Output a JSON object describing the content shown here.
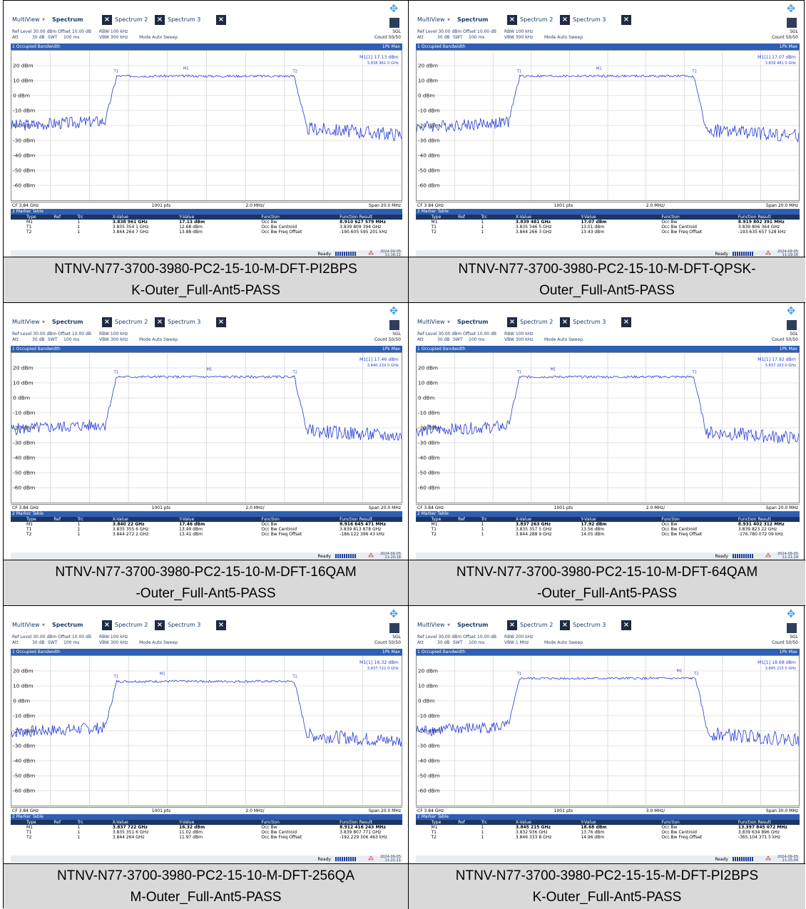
{
  "common": {
    "multiview": "MultiView",
    "tab_spectrum": "Spectrum",
    "tab_spectrum2": "Spectrum 2",
    "tab_spectrum3": "Spectrum 3",
    "ref_level": "Ref Level 30.00 dBm",
    "offset": "Offset 10.00 dB",
    "att": "Att",
    "att_val": "30 dB",
    "swt": "SWT",
    "swt_val": "100 ms",
    "mode": "Mode Auto Sweep",
    "sgl": "SGL",
    "count": "Count 50/50",
    "occ_title": "1 Occupied Bandwidth",
    "pk_max": "1Pk Max",
    "cf": "CF 3.84 GHz",
    "pts": "1001 pts",
    "marker_table": "2 Marker Table",
    "hdr_type": "Type",
    "hdr_ref": "Ref",
    "hdr_trc": "Trc",
    "hdr_x": "X-Value",
    "hdr_y": "Y-Value",
    "hdr_fn": "Function",
    "hdr_res": "Function Result",
    "fn_bw": "Occ Bw",
    "fn_centroid": "Occ Bw Centroid",
    "fn_offset": "Occ Bw Freq Offset",
    "ready": "Ready",
    "y_labels": [
      "20 dBm",
      "10 dBm",
      "0 dBm",
      "-10 dBm",
      "-20 dBm",
      "-30 dBm",
      "-40 dBm",
      "-50 dBm",
      "-60 dBm"
    ],
    "date": "2024-09-05"
  },
  "panels": [
    {
      "caption_line1": "NTNV-N77-3700-3980-PC2-15-10-M-DFT-PI2BPS",
      "caption_line2": "K-Outer_Full-Ant5-PASS",
      "rbw": "RBW 100 kHz",
      "vbw": "VBW 300 kHz",
      "div": "2.0 MHz/",
      "span": "Span 20.0 MHz",
      "m1_label": "M1[1]",
      "m1_level": "17.13 dBm",
      "m1_freq": "3.838 961 0 GHz",
      "rows": [
        {
          "type": "M1",
          "trc": "1",
          "x": "3.838 961 GHz",
          "y": "17.13 dBm",
          "fn": "Occ Bw",
          "res": "8.910 627 579 MHz"
        },
        {
          "type": "T1",
          "trc": "1",
          "x": "3.835 354 1 GHz",
          "y": "12.68 dBm",
          "fn": "Occ Bw Centroid",
          "res": "3.839 809 394 GHz"
        },
        {
          "type": "T2",
          "trc": "1",
          "x": "3.844 264 7 GHz",
          "y": "13.88 dBm",
          "fn": "Occ Bw Freq Offset",
          "res": "-190.605 595 201 kHz"
        }
      ],
      "time": "11:16:11",
      "trace": {
        "floor_left": -20,
        "floor_right": -23,
        "plateau": 13,
        "shape": "a"
      }
    },
    {
      "caption_line1": "NTNV-N77-3700-3980-PC2-15-10-M-DFT-QPSK-",
      "caption_line2": "Outer_Full-Ant5-PASS",
      "rbw": "RBW 100 kHz",
      "vbw": "VBW 300 kHz",
      "div": "2.0 MHz/",
      "span": "Span 20.0 MHz",
      "m1_label": "M1[1]",
      "m1_level": "17.07 dBm",
      "m1_freq": "3.839 481 0 GHz",
      "rows": [
        {
          "type": "M1",
          "trc": "1",
          "x": "3.839 481 GHz",
          "y": "17.07 dBm",
          "fn": "Occ Bw",
          "res": "8.919 802 391 MHz"
        },
        {
          "type": "T1",
          "trc": "1",
          "x": "3.835 346 5 GHz",
          "y": "13.01 dBm",
          "fn": "Occ Bw Centroid",
          "res": "3.839 806 364 GHz"
        },
        {
          "type": "T2",
          "trc": "1",
          "x": "3.844 266 3 GHz",
          "y": "13.43 dBm",
          "fn": "Occ Bw Freq Offset",
          "res": "-193.635 657 528 kHz"
        }
      ],
      "time": "11:19:16",
      "trace": {
        "floor_left": -21,
        "floor_right": -24,
        "plateau": 13,
        "shape": "b"
      }
    },
    {
      "caption_line1": "NTNV-N77-3700-3980-PC2-15-10-M-DFT-16QAM",
      "caption_line2": "-Outer_Full-Ant5-PASS",
      "rbw": "RBW 100 kHz",
      "vbw": "VBW 300 kHz",
      "div": "2.0 MHz/",
      "span": "Span 20.0 MHz",
      "m1_label": "M1[1]",
      "m1_level": "17.46 dBm",
      "m1_freq": "3.840 220 0 GHz",
      "rows": [
        {
          "type": "M1",
          "trc": "1",
          "x": "3.840 22 GHz",
          "y": "17.46 dBm",
          "fn": "Occ Bw",
          "res": "8.916 645 471 MHz"
        },
        {
          "type": "T1",
          "trc": "1",
          "x": "3.835 355 6 GHz",
          "y": "13.49 dBm",
          "fn": "Occ Bw Centroid",
          "res": "3.839 813 878 GHz"
        },
        {
          "type": "T2",
          "trc": "1",
          "x": "3.844 272 2 GHz",
          "y": "13.41 dBm",
          "fn": "Occ Bw Freq Offset",
          "res": "-186.122 396 43 kHz"
        }
      ],
      "time": "11:20:18",
      "trace": {
        "floor_left": -21,
        "floor_right": -23,
        "plateau": 14,
        "shape": "c"
      }
    },
    {
      "caption_line1": "NTNV-N77-3700-3980-PC2-15-10-M-DFT-64QAM",
      "caption_line2": "-Outer_Full-Ant5-PASS",
      "rbw": "RBW 100 kHz",
      "vbw": "VBW 300 kHz",
      "div": "2.0 MHz/",
      "span": "Span 20.0 MHz",
      "m1_label": "M1[1]",
      "m1_level": "17.92 dBm",
      "m1_freq": "3.837 263 0 GHz",
      "rows": [
        {
          "type": "M1",
          "trc": "1",
          "x": "3.837 263 GHz",
          "y": "17.92 dBm",
          "fn": "Occ Bw",
          "res": "8.931 402 312 MHz"
        },
        {
          "type": "T1",
          "trc": "1",
          "x": "3.835 357 5 GHz",
          "y": "13.56 dBm",
          "fn": "Occ Bw Centroid",
          "res": "3.839 823 22 GHz"
        },
        {
          "type": "T2",
          "trc": "1",
          "x": "3.844 288 9 GHz",
          "y": "14.05 dBm",
          "fn": "Occ Bw Freq Offset",
          "res": "-176.780 072 09 kHz"
        }
      ],
      "time": "11:21:19",
      "trace": {
        "floor_left": -22,
        "floor_right": -24,
        "plateau": 14,
        "shape": "d"
      }
    },
    {
      "caption_line1": "NTNV-N77-3700-3980-PC2-15-10-M-DFT-256QA",
      "caption_line2": "M-Outer_Full-Ant5-PASS",
      "rbw": "RBW 100 kHz",
      "vbw": "VBW 300 kHz",
      "div": "2.0 MHz/",
      "span": "Span 20.0 MHz",
      "m1_label": "M1[1]",
      "m1_level": "16.32 dBm",
      "m1_freq": "3.837 722 0 GHz",
      "rows": [
        {
          "type": "M1",
          "trc": "1",
          "x": "3.837 722 GHz",
          "y": "16.32 dBm",
          "fn": "Occ Bw",
          "res": "8.912 416 243 MHz"
        },
        {
          "type": "T1",
          "trc": "1",
          "x": "3.835 351 6 GHz",
          "y": "11.02 dBm",
          "fn": "Occ Bw Centroid",
          "res": "3.839 807 771 GHz"
        },
        {
          "type": "T2",
          "trc": "1",
          "x": "3.844 264 GHz",
          "y": "11.97 dBm",
          "fn": "Occ Bw Freq Offset",
          "res": "-192.229 306 463 kHz"
        }
      ],
      "time": "11:22:11",
      "trace": {
        "floor_left": -21,
        "floor_right": -24,
        "plateau": 13,
        "shape": "e"
      }
    },
    {
      "caption_line1": "NTNV-N77-3700-3980-PC2-15-15-M-DFT-PI2BPS",
      "caption_line2": "K-Outer_Full-Ant5-PASS",
      "rbw": "RBW 200 kHz",
      "vbw": "VBW 1 MHz",
      "div": "3.0 MHz/",
      "span": "Span 30.0 MHz",
      "m1_label": "M1[1]",
      "m1_level": "18.68 dBm",
      "m1_freq": "3.845 215 0 GHz",
      "rows": [
        {
          "type": "M1",
          "trc": "1",
          "x": "3.845 215 GHz",
          "y": "18.68 dBm",
          "fn": "Occ Bw",
          "res": "13.397 845 072 MHz"
        },
        {
          "type": "T1",
          "trc": "1",
          "x": "3.832 936 GHz",
          "y": "13.76 dBm",
          "fn": "Occ Bw Centroid",
          "res": "3.839 634 896 GHz"
        },
        {
          "type": "T2",
          "trc": "1",
          "x": "3.846 333 8 GHz",
          "y": "14.96 dBm",
          "fn": "Occ Bw Freq Offset",
          "res": "-365.104 371 5 kHz"
        }
      ],
      "time": "11:25:04",
      "trace": {
        "floor_left": -20,
        "floor_right": -23,
        "plateau": 15,
        "shape": "f"
      }
    }
  ]
}
